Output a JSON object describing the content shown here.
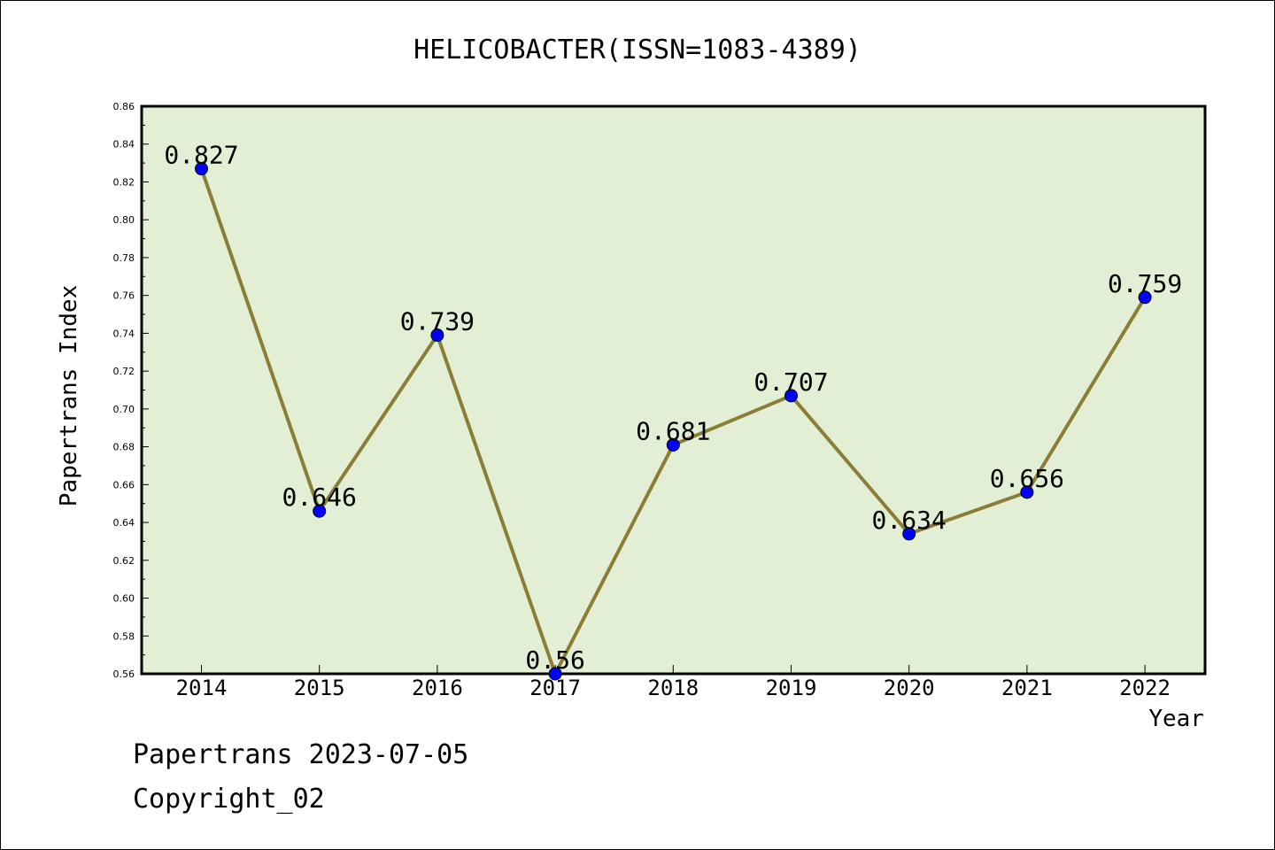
{
  "chart_data": {
    "type": "line",
    "title": "HELICOBACTER(ISSN=1083-4389)",
    "xlabel": "Year",
    "ylabel": "Papertrans Index",
    "categories": [
      "2014",
      "2015",
      "2016",
      "2017",
      "2018",
      "2019",
      "2020",
      "2021",
      "2022"
    ],
    "values": [
      0.827,
      0.646,
      0.739,
      0.56,
      0.681,
      0.707,
      0.634,
      0.656,
      0.759
    ],
    "data_labels": [
      "0.827",
      "0.646",
      "0.739",
      "0.56",
      "0.681",
      "0.707",
      "0.634",
      "0.656",
      "0.759"
    ],
    "ylim": [
      0.56,
      0.86
    ],
    "yticks": [
      "0.56",
      "0.58",
      "0.60",
      "0.62",
      "0.64",
      "0.66",
      "0.68",
      "0.70",
      "0.72",
      "0.74",
      "0.76",
      "0.78",
      "0.80",
      "0.82",
      "0.84",
      "0.86"
    ],
    "grid": false,
    "colors": {
      "plot_background": "#e2efd5",
      "line": "#8b7d35",
      "marker": "#0000ff"
    }
  },
  "footer": {
    "date_line": "Papertrans 2023-07-05",
    "copyright": "Copyright_02"
  }
}
